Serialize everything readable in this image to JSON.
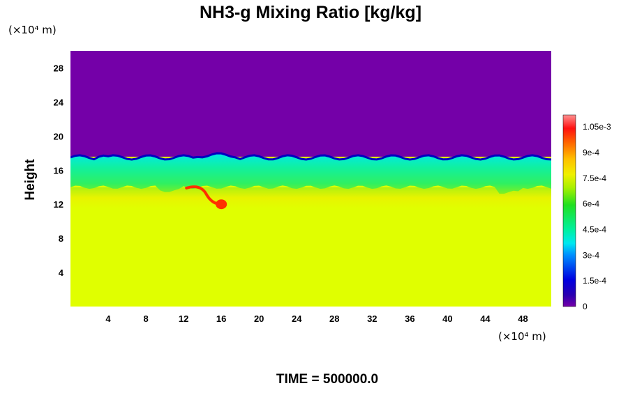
{
  "chart_data": {
    "type": "heatmap",
    "title": "NH3-g Mixing Ratio [kg/kg]",
    "ylabel": "Height",
    "xunit": "(×10⁴ m)",
    "yunit": "(×10⁴ m)",
    "footer": "TIME = 500000.0",
    "xlim": [
      0,
      51
    ],
    "ylim": [
      0,
      30
    ],
    "xticks": [
      4,
      8,
      12,
      16,
      20,
      24,
      28,
      32,
      36,
      40,
      44,
      48
    ],
    "yticks": [
      4,
      8,
      12,
      16,
      20,
      24,
      28
    ],
    "colorbar": {
      "min": 0,
      "max": 0.00112,
      "ticks": [
        {
          "value": 0,
          "label": "0"
        },
        {
          "value": 0.00015,
          "label": "1.5e-4"
        },
        {
          "value": 0.0003,
          "label": "3e-4"
        },
        {
          "value": 0.00045,
          "label": "4.5e-4"
        },
        {
          "value": 0.0006,
          "label": "6e-4"
        },
        {
          "value": 0.00075,
          "label": "7.5e-4"
        },
        {
          "value": 0.0009,
          "label": "9e-4"
        },
        {
          "value": 0.00105,
          "label": "1.05e-3"
        }
      ]
    },
    "fields": {
      "upper_layer_value": 0,
      "lower_layer_value": 0.00078,
      "boundary_height": 17.5,
      "mid_layer": {
        "y_range": [
          14,
          17.5
        ],
        "value": 0.00045
      },
      "transition_layer": {
        "y_range": [
          11.5,
          14
        ],
        "value": 0.00072
      },
      "plume": {
        "x": 16,
        "y": 12,
        "value": 0.00105
      }
    }
  },
  "colors": {
    "upper": "#7400a8",
    "lower": "#e0ff00",
    "mid": "#10f080",
    "edge": "#0000c0",
    "plume": "#ff3000"
  }
}
